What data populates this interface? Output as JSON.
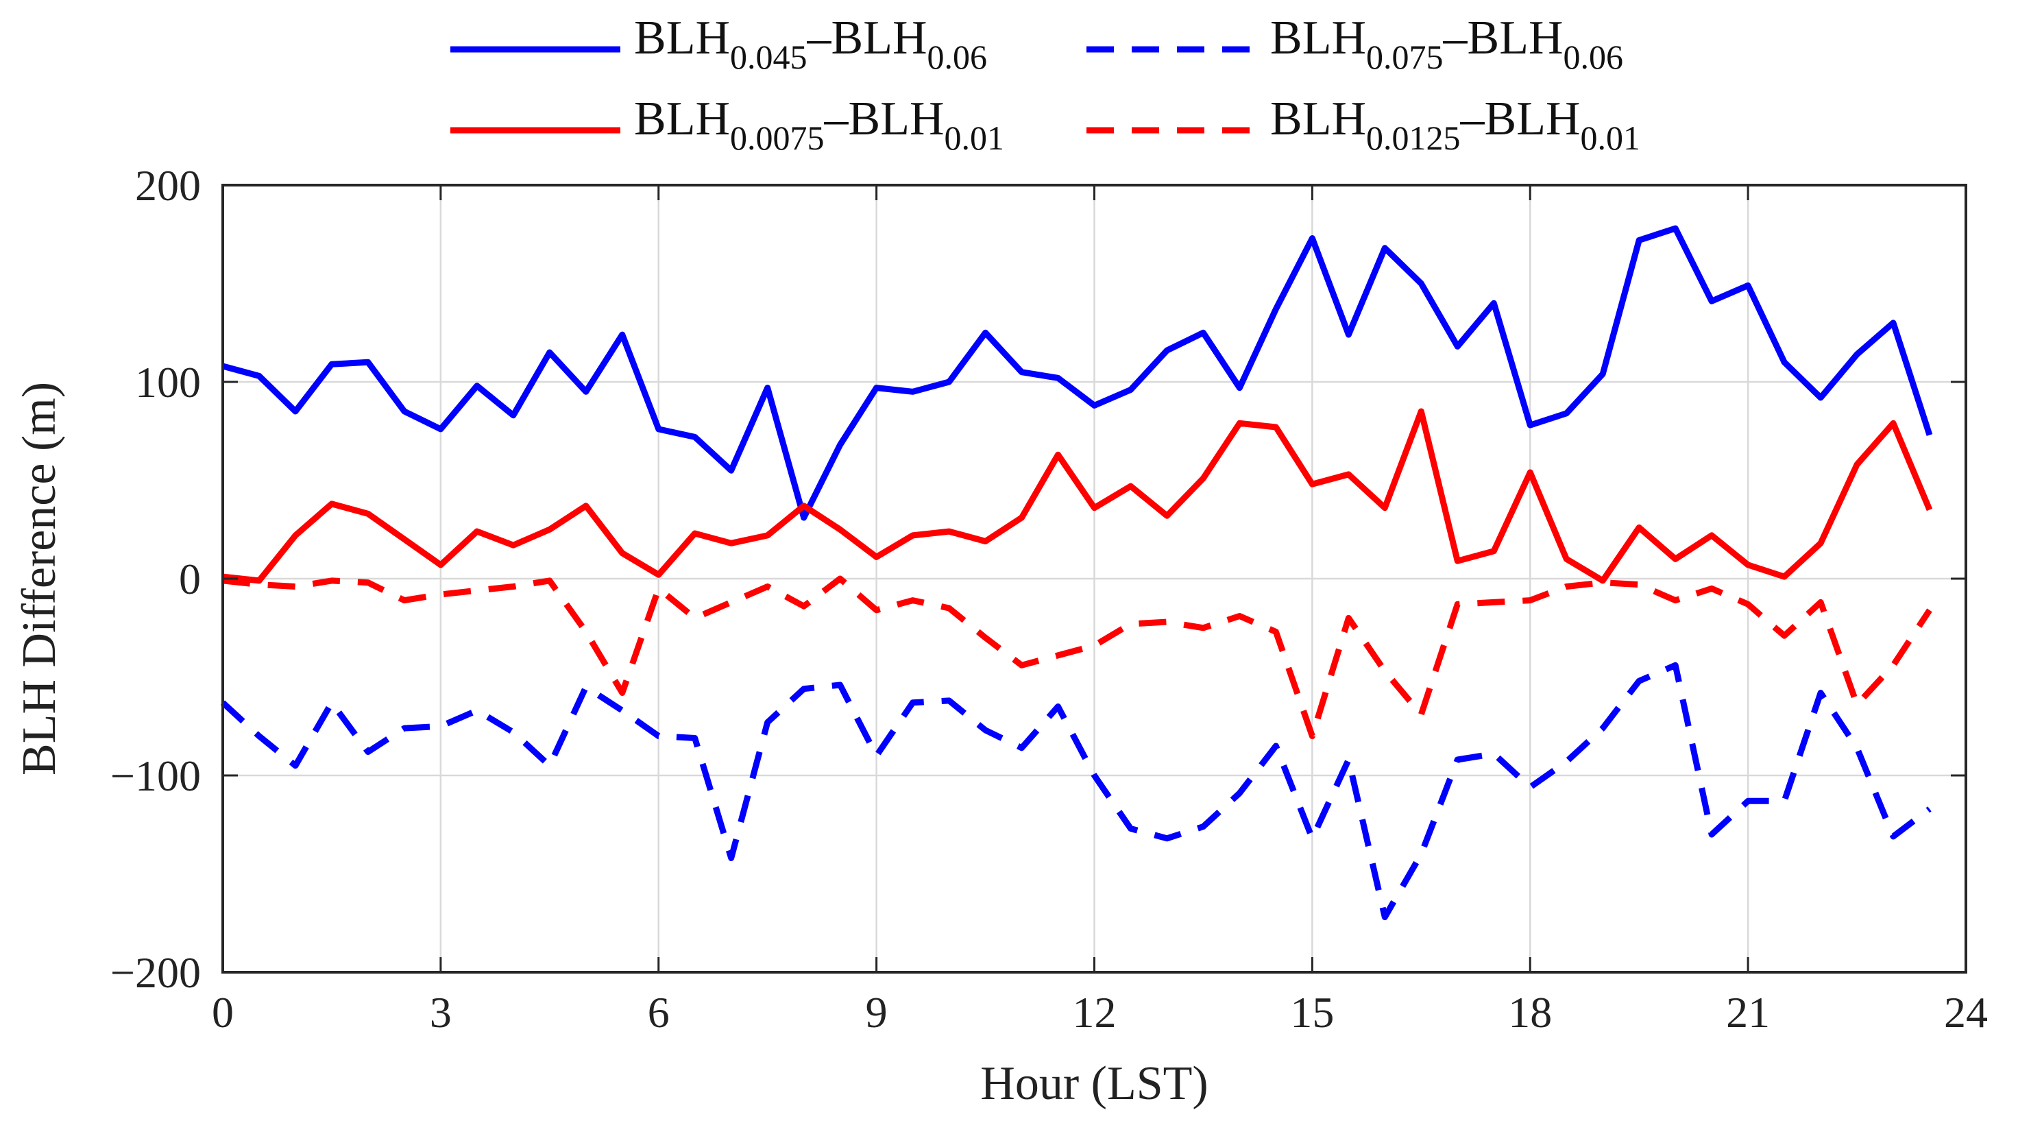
{
  "chart_data": {
    "type": "line",
    "title": "",
    "xlabel": "Hour (LST)",
    "ylabel": "BLH Difference (m)",
    "xlim": [
      0,
      24
    ],
    "ylim": [
      -200,
      200
    ],
    "xticks": [
      0,
      3,
      6,
      9,
      12,
      15,
      18,
      21,
      24
    ],
    "xtick_labels": [
      "0",
      "3",
      "6",
      "9",
      "12",
      "15",
      "18",
      "21",
      "24"
    ],
    "yticks": [
      -200,
      -100,
      0,
      100,
      200
    ],
    "ytick_labels": [
      "−200",
      "−100",
      "0",
      "100",
      "200"
    ],
    "grid": true,
    "legend_position": "top, outside plot, 2 columns",
    "x": [
      0,
      0.5,
      1,
      1.5,
      2,
      2.5,
      3,
      3.5,
      4,
      4.5,
      5,
      5.5,
      6,
      6.5,
      7,
      7.5,
      8,
      8.5,
      9,
      9.5,
      10,
      10.5,
      11,
      11.5,
      12,
      12.5,
      13,
      13.5,
      14,
      14.5,
      15,
      15.5,
      16,
      16.5,
      17,
      17.5,
      18,
      18.5,
      19,
      19.5,
      20,
      20.5,
      21,
      21.5,
      22,
      22.5,
      23,
      23.5
    ],
    "series": [
      {
        "name": "BLH0.045–BLH0.06",
        "legend": {
          "base1": "BLH",
          "sub1": "0.045",
          "sep": "–",
          "base2": "BLH",
          "sub2": "0.06"
        },
        "color": "#0000ff",
        "style": "solid",
        "values": [
          108,
          103,
          85,
          109,
          110,
          85,
          76,
          98,
          83,
          115,
          95,
          124,
          76,
          72,
          55,
          97,
          31,
          68,
          97,
          95,
          100,
          125,
          105,
          102,
          88,
          96,
          116,
          125,
          97,
          137,
          173,
          124,
          168,
          150,
          118,
          140,
          78,
          84,
          104,
          172,
          178,
          141,
          149,
          110,
          92,
          114,
          130,
          73
        ]
      },
      {
        "name": "BLH0.075–BLH0.06",
        "legend": {
          "base1": "BLH",
          "sub1": "0.075",
          "sep": "–",
          "base2": "BLH",
          "sub2": "0.06"
        },
        "color": "#0000ff",
        "style": "dashed",
        "values": [
          -63,
          -80,
          -95,
          -63,
          -88,
          -76,
          -75,
          -67,
          -78,
          -95,
          -55,
          -67,
          -80,
          -81,
          -142,
          -73,
          -56,
          -54,
          -90,
          -63,
          -62,
          -77,
          -86,
          -65,
          -100,
          -127,
          -132,
          -126,
          -109,
          -85,
          -132,
          -92,
          -172,
          -140,
          -92,
          -89,
          -106,
          -93,
          -76,
          -52,
          -44,
          -130,
          -113,
          -113,
          -58,
          -86,
          -131,
          -117
        ]
      },
      {
        "name": "BLH0.0075–BLH0.01",
        "legend": {
          "base1": "BLH",
          "sub1": "0.0075",
          "sep": "–",
          "base2": "BLH",
          "sub2": "0.01"
        },
        "color": "#ff0000",
        "style": "solid",
        "values": [
          1,
          -1,
          22,
          38,
          33,
          20,
          7,
          24,
          17,
          25,
          37,
          13,
          2,
          23,
          18,
          22,
          37,
          25,
          11,
          22,
          24,
          19,
          31,
          63,
          36,
          47,
          32,
          51,
          79,
          77,
          48,
          53,
          36,
          85,
          9,
          14,
          54,
          10,
          -1,
          26,
          10,
          22,
          7,
          1,
          18,
          58,
          79,
          35
        ]
      },
      {
        "name": "BLH0.0125–BLH0.01",
        "legend": {
          "base1": "BLH",
          "sub1": "0.0125",
          "sep": "–",
          "base2": "BLH",
          "sub2": "0.01"
        },
        "color": "#ff0000",
        "style": "dashed",
        "values": [
          -1,
          -3,
          -4,
          -1,
          -2,
          -11,
          -8,
          -6,
          -4,
          -1,
          -27,
          -58,
          -5,
          -20,
          -12,
          -4,
          -14,
          0,
          -16,
          -11,
          -15,
          -30,
          -44,
          -39,
          -34,
          -23,
          -22,
          -25,
          -19,
          -27,
          -80,
          -20,
          -47,
          -69,
          -13,
          -12,
          -11,
          -4,
          -2,
          -3,
          -11,
          -5,
          -13,
          -29,
          -12,
          -64,
          -44,
          -16
        ]
      }
    ]
  }
}
